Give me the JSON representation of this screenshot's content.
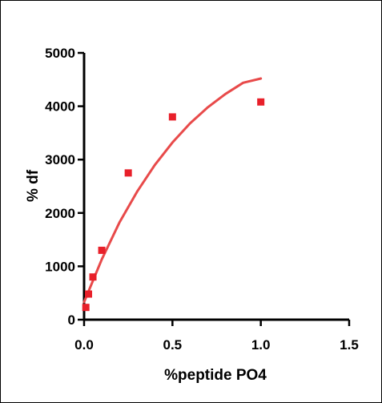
{
  "chart_data": {
    "type": "scatter",
    "title": "",
    "xlabel": "%peptide PO4",
    "ylabel": "% df",
    "xlim": [
      0.0,
      1.5
    ],
    "ylim": [
      0,
      5000
    ],
    "x_ticks": [
      0.0,
      0.5,
      1.0,
      1.5
    ],
    "x_tick_labels": [
      "0.0",
      "0.5",
      "1.0",
      "1.5"
    ],
    "y_ticks": [
      0,
      1000,
      2000,
      3000,
      4000,
      5000
    ],
    "y_tick_labels": [
      "0",
      "1000",
      "2000",
      "3000",
      "4000",
      "5000"
    ],
    "grid": false,
    "legend": "none",
    "series": [
      {
        "kind": "points",
        "marker": "square",
        "color": "#e8202a",
        "x": [
          0.01,
          0.025,
          0.05,
          0.1,
          0.25,
          0.5,
          1.0
        ],
        "y": [
          230,
          480,
          800,
          1300,
          2750,
          3800,
          4080
        ]
      },
      {
        "kind": "fit-curve",
        "color": "#e84a4a",
        "x": [
          0.0,
          0.1,
          0.2,
          0.3,
          0.4,
          0.5,
          0.6,
          0.7,
          0.8,
          0.9,
          1.0
        ],
        "y": [
          330,
          1130,
          1820,
          2400,
          2900,
          3320,
          3680,
          3980,
          4230,
          4440,
          4520
        ]
      }
    ]
  }
}
